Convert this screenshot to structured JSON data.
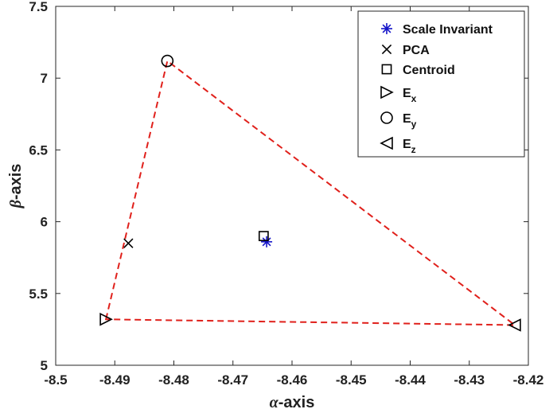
{
  "chart_data": {
    "type": "scatter",
    "xlabel_symbol": "α",
    "xlabel_text": "-axis",
    "ylabel_symbol": "β",
    "ylabel_text": "-axis",
    "xlim": [
      -8.5,
      -8.42
    ],
    "ylim": [
      5,
      7.5
    ],
    "xticks": [
      -8.5,
      -8.49,
      -8.48,
      -8.47,
      -8.46,
      -8.45,
      -8.44,
      -8.43,
      -8.42
    ],
    "xtick_labels": [
      "-8.5",
      "-8.49",
      "-8.48",
      "-8.47",
      "-8.46",
      "-8.45",
      "-8.44",
      "-8.43",
      "-8.42"
    ],
    "yticks": [
      5,
      5.5,
      6,
      6.5,
      7,
      7.5
    ],
    "ytick_labels": [
      "5",
      "5.5",
      "6",
      "6.5",
      "7",
      "7.5"
    ],
    "grid": false,
    "legend_position": "top-right",
    "series": [
      {
        "name": "Scale Invariant",
        "marker": "asterisk",
        "color": "#1414c8",
        "x": -8.4643,
        "y": 5.86
      },
      {
        "name": "PCA",
        "marker": "x",
        "color": "#000000",
        "x": -8.4877,
        "y": 5.85
      },
      {
        "name": "Centroid",
        "marker": "square",
        "color": "#000000",
        "x": -8.4648,
        "y": 5.9
      },
      {
        "name": "E",
        "sub": "x",
        "marker": "triangle-right",
        "color": "#000000",
        "x": -8.4915,
        "y": 5.32
      },
      {
        "name": "E",
        "sub": "y",
        "marker": "circle",
        "color": "#000000",
        "x": -8.4811,
        "y": 7.12
      },
      {
        "name": "E",
        "sub": "z",
        "marker": "triangle-left",
        "color": "#000000",
        "x": -8.4223,
        "y": 5.28
      }
    ],
    "triangle": {
      "color": "#e0201b",
      "style": "dashed",
      "points": [
        {
          "x": -8.4915,
          "y": 5.32
        },
        {
          "x": -8.4811,
          "y": 7.12
        },
        {
          "x": -8.4223,
          "y": 5.28
        }
      ]
    }
  }
}
